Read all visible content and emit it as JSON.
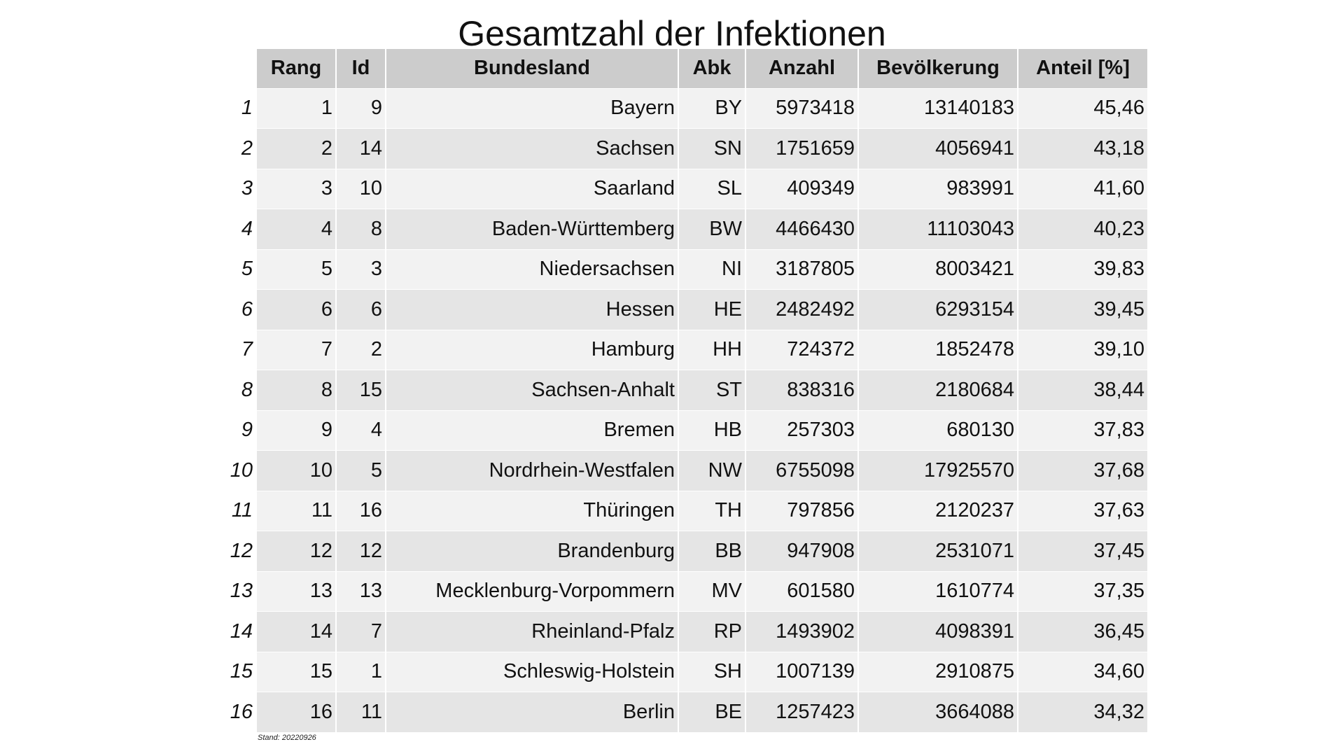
{
  "title": "Gesamtzahl der Infektionen",
  "table": {
    "columns": [
      "Rang",
      "Id",
      "Bundesland",
      "Abk",
      "Anzahl",
      "Bevölkerung",
      "Anteil [%]"
    ],
    "rows": [
      {
        "idx": "1",
        "cells": [
          "1",
          "9",
          "Bayern",
          "BY",
          "5973418",
          "13140183",
          "45,46"
        ]
      },
      {
        "idx": "2",
        "cells": [
          "2",
          "14",
          "Sachsen",
          "SN",
          "1751659",
          "4056941",
          "43,18"
        ]
      },
      {
        "idx": "3",
        "cells": [
          "3",
          "10",
          "Saarland",
          "SL",
          "409349",
          "983991",
          "41,60"
        ]
      },
      {
        "idx": "4",
        "cells": [
          "4",
          "8",
          "Baden-Württemberg",
          "BW",
          "4466430",
          "11103043",
          "40,23"
        ]
      },
      {
        "idx": "5",
        "cells": [
          "5",
          "3",
          "Niedersachsen",
          "NI",
          "3187805",
          "8003421",
          "39,83"
        ]
      },
      {
        "idx": "6",
        "cells": [
          "6",
          "6",
          "Hessen",
          "HE",
          "2482492",
          "6293154",
          "39,45"
        ]
      },
      {
        "idx": "7",
        "cells": [
          "7",
          "2",
          "Hamburg",
          "HH",
          "724372",
          "1852478",
          "39,10"
        ]
      },
      {
        "idx": "8",
        "cells": [
          "8",
          "15",
          "Sachsen-Anhalt",
          "ST",
          "838316",
          "2180684",
          "38,44"
        ]
      },
      {
        "idx": "9",
        "cells": [
          "9",
          "4",
          "Bremen",
          "HB",
          "257303",
          "680130",
          "37,83"
        ]
      },
      {
        "idx": "10",
        "cells": [
          "10",
          "5",
          "Nordrhein-Westfalen",
          "NW",
          "6755098",
          "17925570",
          "37,68"
        ]
      },
      {
        "idx": "11",
        "cells": [
          "11",
          "16",
          "Thüringen",
          "TH",
          "797856",
          "2120237",
          "37,63"
        ]
      },
      {
        "idx": "12",
        "cells": [
          "12",
          "12",
          "Brandenburg",
          "BB",
          "947908",
          "2531071",
          "37,45"
        ]
      },
      {
        "idx": "13",
        "cells": [
          "13",
          "13",
          "Mecklenburg-Vorpommern",
          "MV",
          "601580",
          "1610774",
          "37,35"
        ]
      },
      {
        "idx": "14",
        "cells": [
          "14",
          "7",
          "Rheinland-Pfalz",
          "RP",
          "1493902",
          "4098391",
          "36,45"
        ]
      },
      {
        "idx": "15",
        "cells": [
          "15",
          "1",
          "Schleswig-Holstein",
          "SH",
          "1007139",
          "2910875",
          "34,60"
        ]
      },
      {
        "idx": "16",
        "cells": [
          "16",
          "11",
          "Berlin",
          "BE",
          "1257423",
          "3664088",
          "34,32"
        ]
      }
    ]
  },
  "footnote": "Stand: 20220926",
  "colors": {
    "header_bg": "#cccccc",
    "row_light": "#f2f2f2",
    "row_dark": "#e5e5e5"
  }
}
